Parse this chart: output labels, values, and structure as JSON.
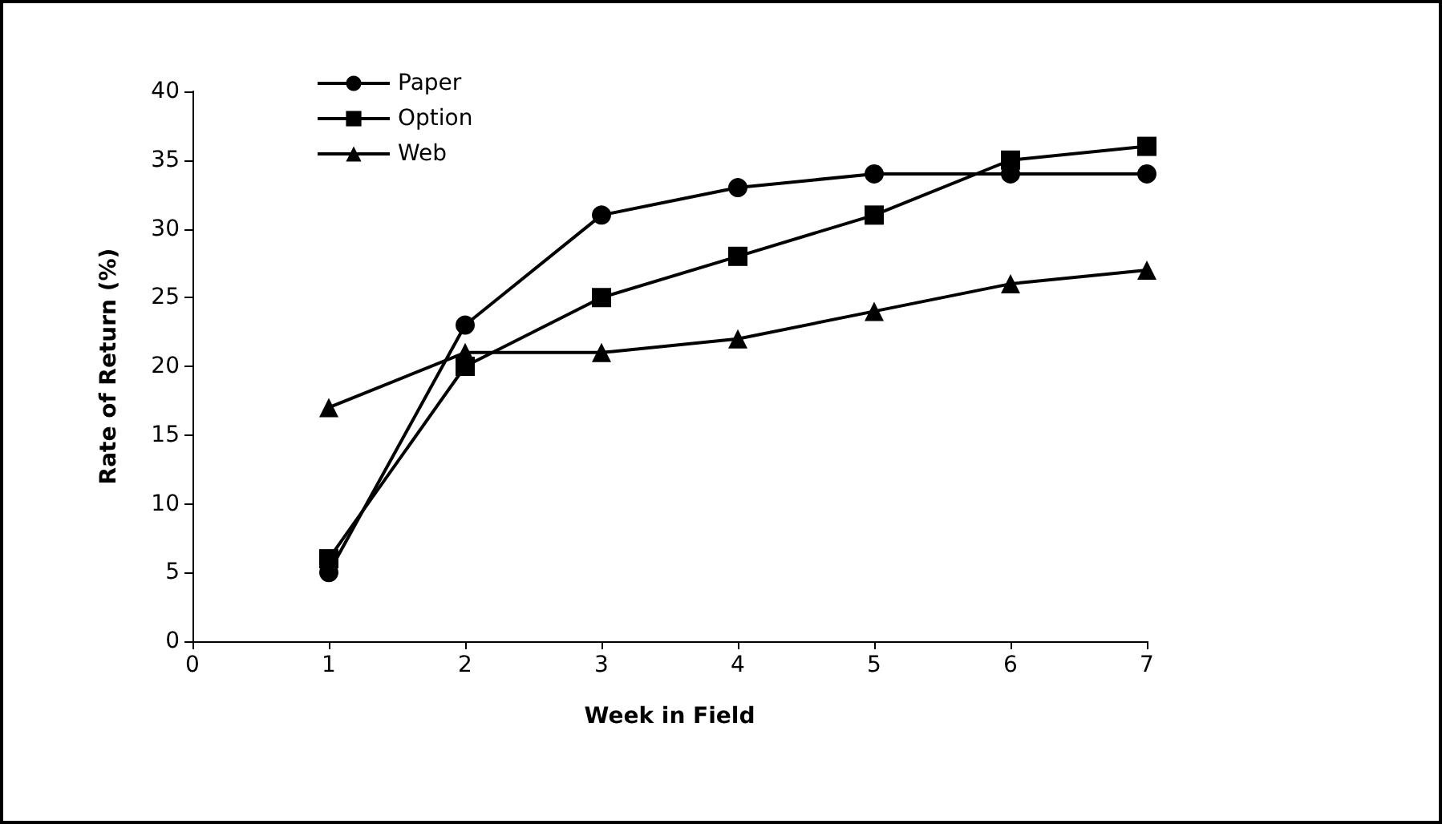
{
  "chart_data": {
    "type": "line",
    "xlabel": "Week in Field",
    "ylabel": "Rate of Return (%)",
    "x": [
      1,
      2,
      3,
      4,
      5,
      6,
      7
    ],
    "series": [
      {
        "name": "Paper",
        "color": "#000000",
        "marker": "circle",
        "values": [
          5,
          23,
          31,
          33,
          34,
          34,
          34
        ]
      },
      {
        "name": "Option",
        "color": "#000000",
        "marker": "square",
        "values": [
          6,
          20,
          25,
          28,
          31,
          35,
          36
        ]
      },
      {
        "name": "Web",
        "color": "#000000",
        "marker": "triangle",
        "values": [
          17,
          21,
          21,
          22,
          24,
          26,
          27
        ]
      }
    ],
    "xlim": [
      0,
      7
    ],
    "xticks": [
      0,
      1,
      2,
      3,
      4,
      5,
      6,
      7
    ],
    "ylim": [
      0,
      40
    ],
    "yticks": [
      0,
      5,
      10,
      15,
      20,
      25,
      30,
      35,
      40
    ],
    "grid": false,
    "legend": "top left",
    "line_style": "solid"
  }
}
